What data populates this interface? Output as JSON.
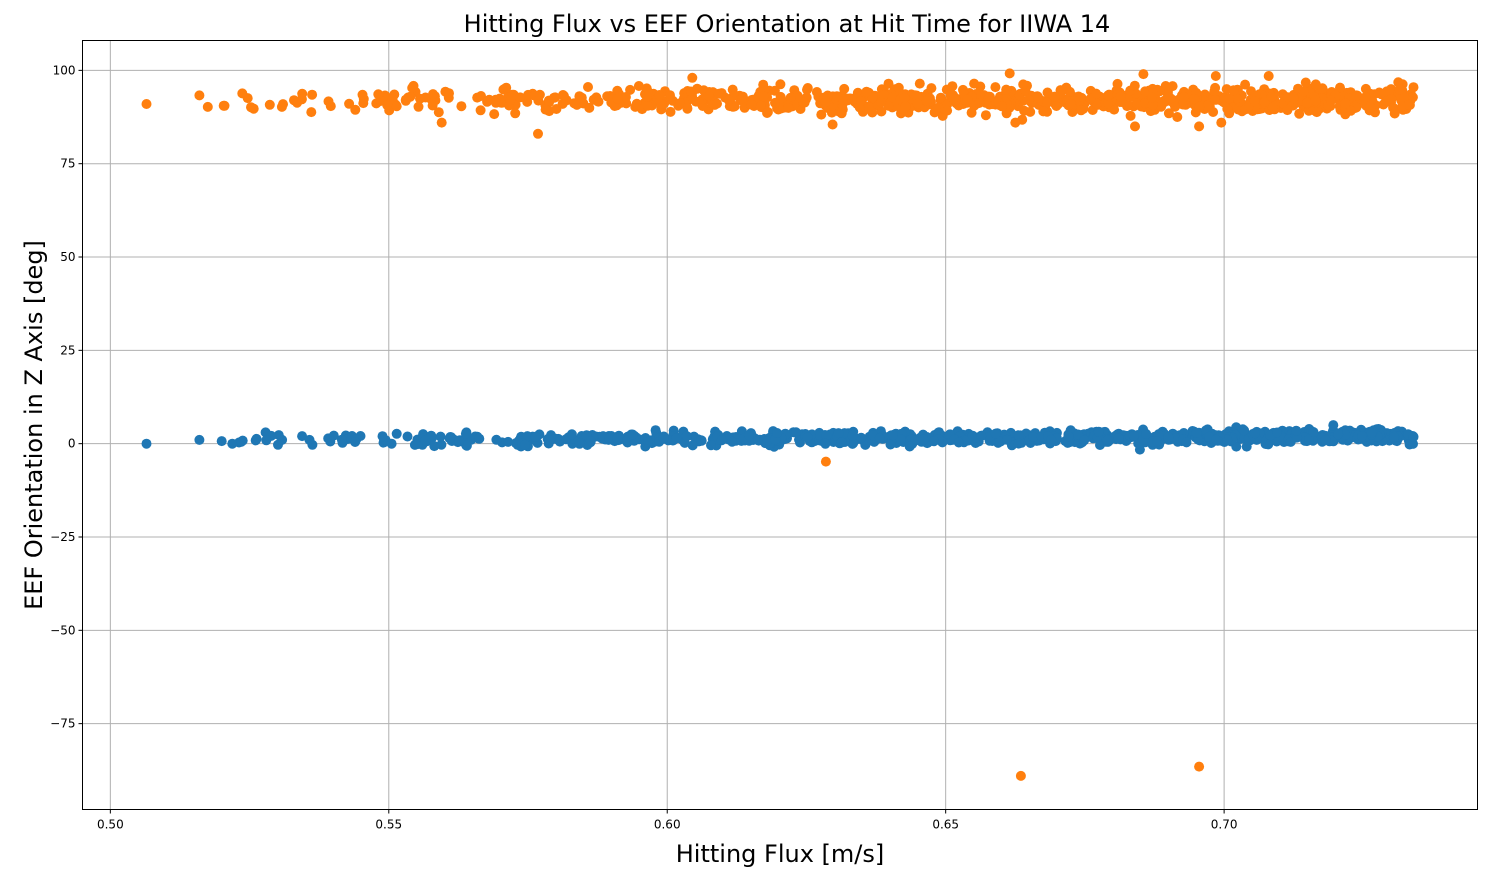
{
  "chart_data": {
    "type": "scatter",
    "title": "Hitting Flux vs EEF Orientation at Hit Time for IIWA 14",
    "xlabel": "Hitting Flux [m/s]",
    "ylabel": "EEF Orientation in Z Axis [deg]",
    "xlim": [
      0.495,
      0.7455
    ],
    "ylim": [
      -98,
      108
    ],
    "xticks": [
      0.5,
      0.55,
      0.6,
      0.65,
      0.7
    ],
    "xtick_labels": [
      "0.50",
      "0.55",
      "0.60",
      "0.65",
      "0.70"
    ],
    "yticks": [
      100,
      75,
      50,
      25,
      0,
      -25,
      -50,
      -75
    ],
    "ytick_labels": [
      "100",
      "75",
      "50",
      "25",
      "0",
      "−25",
      "−50",
      "−75"
    ],
    "grid": true,
    "colors": {
      "series_0": "#1f77b4",
      "series_1": "#ff7f0e"
    },
    "series": [
      {
        "color": "#1f77b4",
        "generated": {
          "seed": 11,
          "n": 900,
          "x_min": 0.516,
          "x_max": 0.734,
          "y_center": 0.8,
          "y_spread": 1.6
        },
        "points": [
          {
            "x": 0.5065,
            "y": 0.0
          },
          {
            "x": 0.516,
            "y": 1.0
          },
          {
            "x": 0.52,
            "y": 0.7
          },
          {
            "x": 0.5235,
            "y": 0.5
          },
          {
            "x": 0.528,
            "y": 0.9
          },
          {
            "x": 0.6405,
            "y": 2.3
          },
          {
            "x": 0.6775,
            "y": 3.2
          },
          {
            "x": 0.686,
            "y": 2.6
          },
          {
            "x": 0.7055,
            "y": 2.8
          },
          {
            "x": 0.7095,
            "y": 3.0
          },
          {
            "x": 0.7265,
            "y": 2.9
          },
          {
            "x": 0.734,
            "y": 1.8
          }
        ]
      },
      {
        "color": "#ff7f0e",
        "generated": {
          "seed": 29,
          "n": 950,
          "x_min": 0.516,
          "x_max": 0.734,
          "y_center": 92.0,
          "y_spread": 3.0
        },
        "points": [
          {
            "x": 0.5065,
            "y": 91.0
          },
          {
            "x": 0.516,
            "y": 93.3
          },
          {
            "x": 0.5175,
            "y": 90.2
          },
          {
            "x": 0.5205,
            "y": 90.5
          },
          {
            "x": 0.5595,
            "y": 86.0
          },
          {
            "x": 0.5768,
            "y": 83.0
          },
          {
            "x": 0.6045,
            "y": 98.0
          },
          {
            "x": 0.6297,
            "y": 85.5
          },
          {
            "x": 0.6285,
            "y": -4.8
          },
          {
            "x": 0.6615,
            "y": 99.2
          },
          {
            "x": 0.6625,
            "y": 86.0
          },
          {
            "x": 0.6635,
            "y": -89.0
          },
          {
            "x": 0.684,
            "y": 85.0
          },
          {
            "x": 0.6855,
            "y": 99.0
          },
          {
            "x": 0.6955,
            "y": 85.0
          },
          {
            "x": 0.6955,
            "y": -86.5
          },
          {
            "x": 0.6985,
            "y": 98.5
          },
          {
            "x": 0.6995,
            "y": 86.0
          },
          {
            "x": 0.708,
            "y": 98.5
          },
          {
            "x": 0.734,
            "y": 95.5
          }
        ]
      }
    ]
  }
}
